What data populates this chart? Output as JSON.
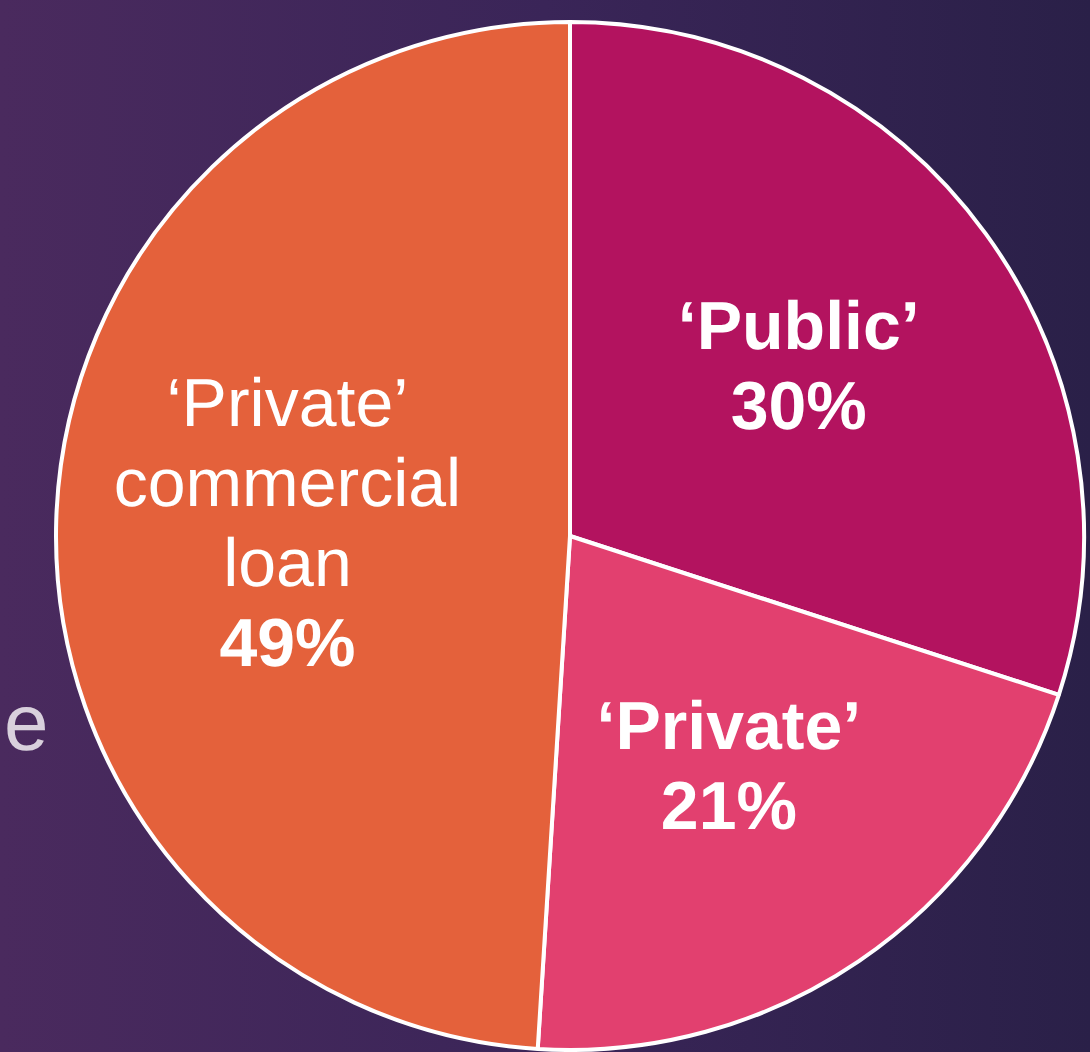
{
  "chart_data": {
    "type": "pie",
    "categories": [
      "‘Public’",
      "‘Private’",
      "‘Private’ commercial loan"
    ],
    "values": [
      30,
      21,
      49
    ],
    "colors": [
      "#b3135f",
      "#e2406f",
      "#e4613b"
    ],
    "value_labels": [
      "30%",
      "21%",
      "49%"
    ],
    "legend": false,
    "annotations": [
      "e"
    ]
  }
}
